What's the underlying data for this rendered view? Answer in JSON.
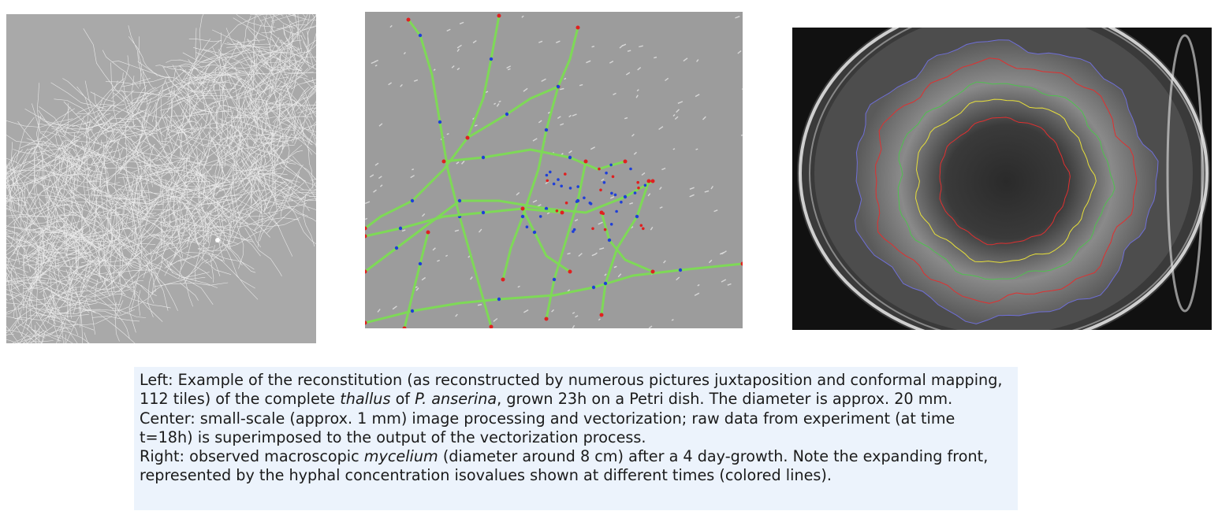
{
  "figure": {
    "panels": [
      {
        "id": "left",
        "depicts": "reconstructed-thallus-hyphal-network"
      },
      {
        "id": "center",
        "depicts": "vectorized-hyphae-with-nodes"
      },
      {
        "id": "right",
        "depicts": "petri-dish-mycelium-with-isolines"
      }
    ],
    "colors": {
      "hyphae_vector": "#7ed957",
      "branch_node": "#1f3fd8",
      "tip_node": "#e02020",
      "isoline_outer": "#6f6fd8",
      "isoline_red": "#e03030",
      "isoline_green": "#4fc04f",
      "isoline_yellow": "#e8e03a",
      "caption_background": "#ecf3fc"
    }
  },
  "caption": {
    "left_prefix": "Left: Example of the reconstitution (as reconstructed by numerous pictures juxtaposition and conformal mapping, 112 tiles) of the complete ",
    "left_em1": "thallus",
    "left_mid": " of ",
    "left_em2": "P. anserina",
    "left_suffix": ", grown 23h on a Petri dish. The diameter is approx. 20 mm.",
    "center": "Center: small-scale (approx. 1 mm) image processing and vectorization; raw data from experiment (at time t=18h) is superimposed to the output of the vectorization process.",
    "right_prefix": "Right: observed macroscopic ",
    "right_em": "mycelium",
    "right_suffix": " (diameter around 8 cm) after a 4 day-growth. Note the expanding front, represented by the hyphal concentration isovalues shown at different times (colored lines)."
  }
}
